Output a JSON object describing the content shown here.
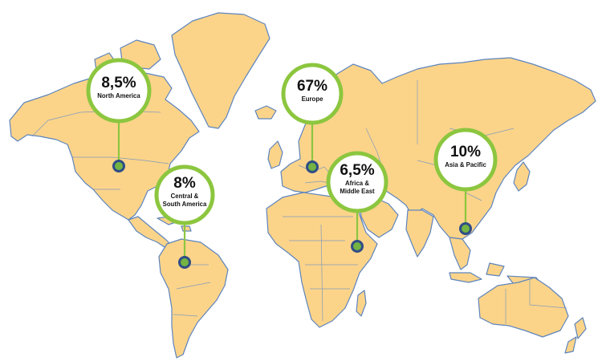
{
  "map": {
    "regions": [
      {
        "id": "north-america",
        "percent": "8,5%",
        "label_lines": [
          "North America"
        ]
      },
      {
        "id": "central-south-america",
        "percent": "8%",
        "label_lines": [
          "Central  &",
          "South America"
        ]
      },
      {
        "id": "europe",
        "percent": "67%",
        "label_lines": [
          "Europe"
        ]
      },
      {
        "id": "africa-middle-east",
        "percent": "6,5%",
        "label_lines": [
          "Africa &",
          "Middle East"
        ]
      },
      {
        "id": "asia-pacific",
        "percent": "10%",
        "label_lines": [
          "Asia & Pacific"
        ]
      }
    ],
    "colors": {
      "land": "#fbd48a",
      "coast": "#5d84bd",
      "bubble_ring": "#8cc63f",
      "pin_outer": "#2f4e86",
      "pin_inner": "#73b443"
    }
  }
}
